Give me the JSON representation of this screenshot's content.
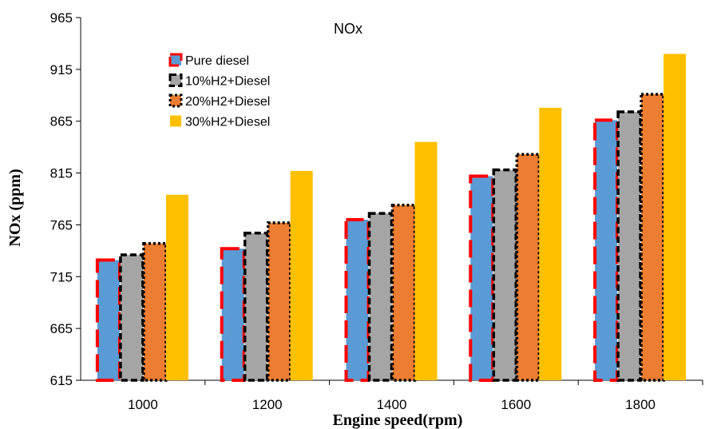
{
  "chart_data": {
    "type": "bar",
    "title": "NOx",
    "xlabel": "Engine speed(rpm)",
    "ylabel": "NOx (ppm)",
    "categories": [
      "1000",
      "1200",
      "1400",
      "1600",
      "1800"
    ],
    "ylim": [
      615,
      965
    ],
    "yticks": [
      615,
      665,
      715,
      765,
      815,
      865,
      915,
      965
    ],
    "grid": false,
    "legend_position": "top-left",
    "series": [
      {
        "name": "Pure diesel",
        "values": [
          731,
          742,
          770,
          812,
          866
        ],
        "fill": "#5b9bd5",
        "border": "#ff0000",
        "border_style": "long-dash"
      },
      {
        "name": "10%H2+Diesel",
        "values": [
          736,
          757,
          776,
          818,
          874
        ],
        "fill": "#a5a5a5",
        "border": "#000000",
        "border_style": "dash"
      },
      {
        "name": "20%H2+Diesel",
        "values": [
          747,
          767,
          784,
          833,
          891
        ],
        "fill": "#ed7d31",
        "border": "#000000",
        "border_style": "dot"
      },
      {
        "name": "30%H2+Diesel",
        "values": [
          794,
          817,
          845,
          878,
          930
        ],
        "fill": "#ffc000",
        "border": "none",
        "border_style": "none"
      }
    ]
  }
}
